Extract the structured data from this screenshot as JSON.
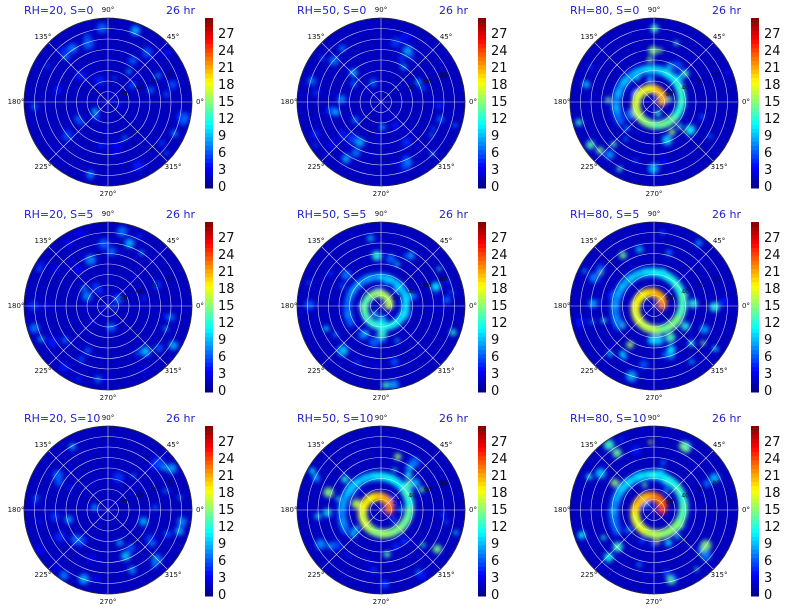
{
  "chart_data": [
    {
      "type": "heatmap",
      "projection": "polar",
      "title": "RH=20, S=0",
      "time_label": "26 hr",
      "rh": 20,
      "s": 0,
      "intensity": 0.05,
      "angle_ticks": [
        "0°",
        "45°",
        "90°",
        "135°",
        "180°",
        "225°",
        "270°",
        "315°"
      ],
      "radial_tick_labels": [
        "20",
        "40",
        "60",
        "80"
      ],
      "colorbar": {
        "ticks": [
          0,
          3,
          6,
          9,
          12,
          15,
          18,
          21,
          24,
          27
        ],
        "range": [
          0,
          30
        ],
        "colormap": "jet"
      }
    },
    {
      "type": "heatmap",
      "projection": "polar",
      "title": "RH=50, S=0",
      "time_label": "26 hr",
      "rh": 50,
      "s": 0,
      "intensity": 0.1,
      "angle_ticks": [
        "0°",
        "45°",
        "90°",
        "135°",
        "180°",
        "225°",
        "270°",
        "315°"
      ],
      "radial_tick_labels": [
        "20",
        "40",
        "60",
        "80"
      ],
      "colorbar": {
        "ticks": [
          0,
          3,
          6,
          9,
          12,
          15,
          18,
          21,
          24,
          27
        ],
        "range": [
          0,
          30
        ],
        "colormap": "jet"
      }
    },
    {
      "type": "heatmap",
      "projection": "polar",
      "title": "RH=80, S=0",
      "time_label": "26 hr",
      "rh": 80,
      "s": 0,
      "intensity": 0.45,
      "angle_ticks": [
        "0°",
        "45°",
        "90°",
        "135°",
        "180°",
        "225°",
        "270°",
        "315°"
      ],
      "radial_tick_labels": [
        "20",
        "40",
        "60",
        "80"
      ],
      "colorbar": {
        "ticks": [
          0,
          3,
          6,
          9,
          12,
          15,
          18,
          21,
          24,
          27
        ],
        "range": [
          0,
          30
        ],
        "colormap": "jet"
      }
    },
    {
      "type": "heatmap",
      "projection": "polar",
      "title": "RH=20, S=5",
      "time_label": "26 hr",
      "rh": 20,
      "s": 5,
      "intensity": 0.05,
      "angle_ticks": [
        "0°",
        "45°",
        "90°",
        "135°",
        "180°",
        "225°",
        "270°",
        "315°"
      ],
      "radial_tick_labels": [
        "20",
        "40",
        "60",
        "80"
      ],
      "colorbar": {
        "ticks": [
          0,
          3,
          6,
          9,
          12,
          15,
          18,
          21,
          24,
          27
        ],
        "range": [
          0,
          30
        ],
        "colormap": "jet"
      }
    },
    {
      "type": "heatmap",
      "projection": "polar",
      "title": "RH=50, S=5",
      "time_label": "26 hr",
      "rh": 50,
      "s": 5,
      "intensity": 0.3,
      "angle_ticks": [
        "0°",
        "45°",
        "90°",
        "135°",
        "180°",
        "225°",
        "270°",
        "315°"
      ],
      "radial_tick_labels": [
        "20",
        "40",
        "60",
        "80"
      ],
      "colorbar": {
        "ticks": [
          0,
          3,
          6,
          9,
          12,
          15,
          18,
          21,
          24,
          27
        ],
        "range": [
          0,
          30
        ],
        "colormap": "jet"
      }
    },
    {
      "type": "heatmap",
      "projection": "polar",
      "title": "RH=80, S=5",
      "time_label": "26 hr",
      "rh": 80,
      "s": 5,
      "intensity": 0.5,
      "angle_ticks": [
        "0°",
        "45°",
        "90°",
        "135°",
        "180°",
        "225°",
        "270°",
        "315°"
      ],
      "radial_tick_labels": [
        "20",
        "40",
        "60",
        "80"
      ],
      "colorbar": {
        "ticks": [
          0,
          3,
          6,
          9,
          12,
          15,
          18,
          21,
          24,
          27
        ],
        "range": [
          0,
          30
        ],
        "colormap": "jet"
      }
    },
    {
      "type": "heatmap",
      "projection": "polar",
      "title": "RH=20, S=10",
      "time_label": "26 hr",
      "rh": 20,
      "s": 10,
      "intensity": 0.07,
      "angle_ticks": [
        "0°",
        "45°",
        "90°",
        "135°",
        "180°",
        "225°",
        "270°",
        "315°"
      ],
      "radial_tick_labels": [
        "20",
        "40",
        "60",
        "80"
      ],
      "colorbar": {
        "ticks": [
          0,
          3,
          6,
          9,
          12,
          15,
          18,
          21,
          24,
          27
        ],
        "range": [
          0,
          30
        ],
        "colormap": "jet"
      }
    },
    {
      "type": "heatmap",
      "projection": "polar",
      "title": "RH=50, S=10",
      "time_label": "26 hr",
      "rh": 50,
      "s": 10,
      "intensity": 0.5,
      "angle_ticks": [
        "0°",
        "45°",
        "90°",
        "135°",
        "180°",
        "225°",
        "270°",
        "315°"
      ],
      "radial_tick_labels": [
        "20",
        "40",
        "60",
        "80"
      ],
      "colorbar": {
        "ticks": [
          0,
          3,
          6,
          9,
          12,
          15,
          18,
          21,
          24,
          27
        ],
        "range": [
          0,
          30
        ],
        "colormap": "jet"
      }
    },
    {
      "type": "heatmap",
      "projection": "polar",
      "title": "RH=80, S=10",
      "time_label": "26 hr",
      "rh": 80,
      "s": 10,
      "intensity": 0.55,
      "angle_ticks": [
        "0°",
        "45°",
        "90°",
        "135°",
        "180°",
        "225°",
        "270°",
        "315°"
      ],
      "radial_tick_labels": [
        "20",
        "40",
        "60",
        "80"
      ],
      "colorbar": {
        "ticks": [
          0,
          3,
          6,
          9,
          12,
          15,
          18,
          21,
          24,
          27
        ],
        "range": [
          0,
          30
        ],
        "colormap": "jet"
      }
    }
  ],
  "colors": {
    "title_text": "#1f1fcf",
    "background_low": "#0a1fd9",
    "grid": "#ffffff"
  }
}
